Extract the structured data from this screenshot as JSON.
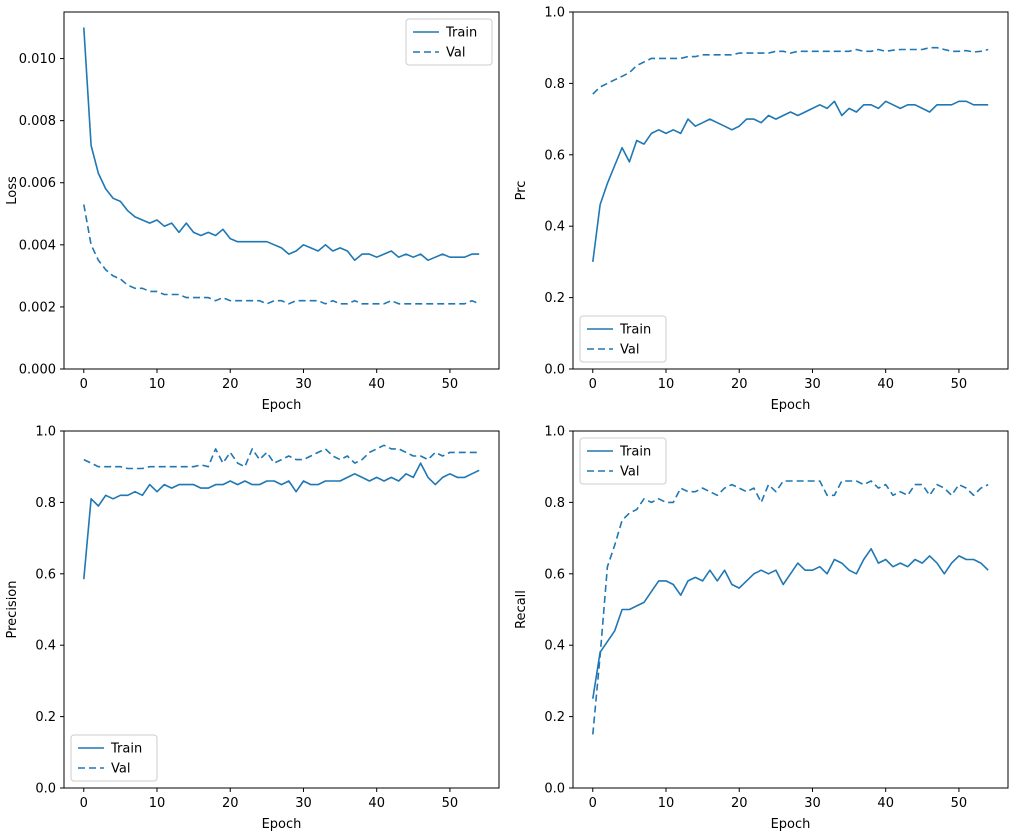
{
  "figure": {
    "background": "#ffffff",
    "accent_color": "#1f77b4",
    "legend_labels": [
      "Train",
      "Val"
    ]
  },
  "chart_data": [
    {
      "type": "line",
      "xlabel": "Epoch",
      "ylabel": "Loss",
      "xlim": [
        -2.7,
        56.7
      ],
      "ylim": [
        0,
        0.0115
      ],
      "xticks": [
        0,
        10,
        20,
        30,
        40,
        50
      ],
      "xtick_labels": [
        "0",
        "10",
        "20",
        "30",
        "40",
        "50"
      ],
      "yticks": [
        0,
        0.002,
        0.004,
        0.006,
        0.008,
        0.01
      ],
      "ytick_labels": [
        "0.000",
        "0.002",
        "0.004",
        "0.006",
        "0.008",
        "0.010"
      ],
      "grid": false,
      "legend": {
        "position": "top-right",
        "entries": [
          "Train",
          "Val"
        ]
      },
      "series": [
        {
          "name": "Train",
          "style": "solid",
          "color": "#1f77b4",
          "values": [
            0.011,
            0.0072,
            0.0063,
            0.0058,
            0.0055,
            0.0054,
            0.0051,
            0.0049,
            0.0048,
            0.0047,
            0.0048,
            0.0046,
            0.0047,
            0.0044,
            0.0047,
            0.0044,
            0.0043,
            0.0044,
            0.0043,
            0.0045,
            0.0042,
            0.0041,
            0.0041,
            0.0041,
            0.0041,
            0.0041,
            0.004,
            0.0039,
            0.0037,
            0.0038,
            0.004,
            0.0039,
            0.0038,
            0.004,
            0.0038,
            0.0039,
            0.0038,
            0.0035,
            0.0037,
            0.0037,
            0.0036,
            0.0037,
            0.0038,
            0.0036,
            0.0037,
            0.0036,
            0.0037,
            0.0035,
            0.0036,
            0.0037,
            0.0036,
            0.0036,
            0.0036,
            0.0037,
            0.0037
          ]
        },
        {
          "name": "Val",
          "style": "dashed",
          "color": "#1f77b4",
          "values": [
            0.0053,
            0.004,
            0.0035,
            0.0032,
            0.003,
            0.0029,
            0.0027,
            0.0026,
            0.0026,
            0.0025,
            0.0025,
            0.0024,
            0.0024,
            0.0024,
            0.0023,
            0.0023,
            0.0023,
            0.0023,
            0.0022,
            0.0023,
            0.0022,
            0.0022,
            0.0022,
            0.0022,
            0.0022,
            0.0021,
            0.0022,
            0.0022,
            0.0021,
            0.0022,
            0.0022,
            0.0022,
            0.0022,
            0.0021,
            0.0022,
            0.0021,
            0.0021,
            0.0022,
            0.0021,
            0.0021,
            0.0021,
            0.0021,
            0.0022,
            0.0021,
            0.0021,
            0.0021,
            0.0021,
            0.0021,
            0.0021,
            0.0021,
            0.0021,
            0.0021,
            0.0021,
            0.0022,
            0.0021
          ]
        }
      ]
    },
    {
      "type": "line",
      "xlabel": "Epoch",
      "ylabel": "Prc",
      "xlim": [
        -2.7,
        56.7
      ],
      "ylim": [
        0,
        1.0
      ],
      "xticks": [
        0,
        10,
        20,
        30,
        40,
        50
      ],
      "xtick_labels": [
        "0",
        "10",
        "20",
        "30",
        "40",
        "50"
      ],
      "yticks": [
        0,
        0.2,
        0.4,
        0.6,
        0.8,
        1.0
      ],
      "ytick_labels": [
        "0.0",
        "0.2",
        "0.4",
        "0.6",
        "0.8",
        "1.0"
      ],
      "grid": false,
      "legend": {
        "position": "bottom-left",
        "entries": [
          "Train",
          "Val"
        ]
      },
      "series": [
        {
          "name": "Train",
          "style": "solid",
          "color": "#1f77b4",
          "values": [
            0.3,
            0.46,
            0.52,
            0.57,
            0.62,
            0.58,
            0.64,
            0.63,
            0.66,
            0.67,
            0.66,
            0.67,
            0.66,
            0.7,
            0.68,
            0.69,
            0.7,
            0.69,
            0.68,
            0.67,
            0.68,
            0.7,
            0.7,
            0.69,
            0.71,
            0.7,
            0.71,
            0.72,
            0.71,
            0.72,
            0.73,
            0.74,
            0.73,
            0.75,
            0.71,
            0.73,
            0.72,
            0.74,
            0.74,
            0.73,
            0.75,
            0.74,
            0.73,
            0.74,
            0.74,
            0.73,
            0.72,
            0.74,
            0.74,
            0.74,
            0.75,
            0.75,
            0.74,
            0.74,
            0.74
          ]
        },
        {
          "name": "Val",
          "style": "dashed",
          "color": "#1f77b4",
          "values": [
            0.77,
            0.79,
            0.8,
            0.81,
            0.82,
            0.83,
            0.85,
            0.86,
            0.87,
            0.87,
            0.87,
            0.87,
            0.87,
            0.875,
            0.875,
            0.88,
            0.88,
            0.88,
            0.88,
            0.88,
            0.885,
            0.885,
            0.885,
            0.885,
            0.885,
            0.89,
            0.89,
            0.885,
            0.89,
            0.89,
            0.89,
            0.89,
            0.89,
            0.89,
            0.89,
            0.89,
            0.895,
            0.89,
            0.89,
            0.895,
            0.89,
            0.893,
            0.895,
            0.895,
            0.895,
            0.895,
            0.9,
            0.9,
            0.895,
            0.89,
            0.89,
            0.892,
            0.888,
            0.89,
            0.895
          ]
        }
      ]
    },
    {
      "type": "line",
      "xlabel": "Epoch",
      "ylabel": "Precision",
      "xlim": [
        -2.7,
        56.7
      ],
      "ylim": [
        0,
        1.0
      ],
      "xticks": [
        0,
        10,
        20,
        30,
        40,
        50
      ],
      "xtick_labels": [
        "0",
        "10",
        "20",
        "30",
        "40",
        "50"
      ],
      "yticks": [
        0,
        0.2,
        0.4,
        0.6,
        0.8,
        1.0
      ],
      "ytick_labels": [
        "0.0",
        "0.2",
        "0.4",
        "0.6",
        "0.8",
        "1.0"
      ],
      "grid": false,
      "legend": {
        "position": "bottom-left",
        "entries": [
          "Train",
          "Val"
        ]
      },
      "series": [
        {
          "name": "Train",
          "style": "solid",
          "color": "#1f77b4",
          "values": [
            0.585,
            0.81,
            0.79,
            0.82,
            0.81,
            0.82,
            0.82,
            0.83,
            0.82,
            0.85,
            0.83,
            0.85,
            0.84,
            0.85,
            0.85,
            0.85,
            0.84,
            0.84,
            0.85,
            0.85,
            0.86,
            0.85,
            0.86,
            0.85,
            0.85,
            0.86,
            0.86,
            0.85,
            0.86,
            0.83,
            0.86,
            0.85,
            0.85,
            0.86,
            0.86,
            0.86,
            0.87,
            0.88,
            0.87,
            0.86,
            0.87,
            0.86,
            0.87,
            0.86,
            0.88,
            0.87,
            0.91,
            0.87,
            0.85,
            0.87,
            0.88,
            0.87,
            0.87,
            0.88,
            0.89
          ]
        },
        {
          "name": "Val",
          "style": "dashed",
          "color": "#1f77b4",
          "values": [
            0.92,
            0.91,
            0.9,
            0.9,
            0.9,
            0.9,
            0.895,
            0.895,
            0.895,
            0.9,
            0.9,
            0.9,
            0.9,
            0.9,
            0.9,
            0.9,
            0.905,
            0.9,
            0.95,
            0.91,
            0.94,
            0.91,
            0.9,
            0.95,
            0.92,
            0.94,
            0.91,
            0.92,
            0.93,
            0.92,
            0.92,
            0.93,
            0.94,
            0.95,
            0.93,
            0.92,
            0.93,
            0.91,
            0.92,
            0.94,
            0.95,
            0.96,
            0.95,
            0.95,
            0.94,
            0.93,
            0.93,
            0.92,
            0.94,
            0.93,
            0.94,
            0.94,
            0.94,
            0.94,
            0.94
          ]
        }
      ]
    },
    {
      "type": "line",
      "xlabel": "Epoch",
      "ylabel": "Recall",
      "xlim": [
        -2.7,
        56.7
      ],
      "ylim": [
        0,
        1.0
      ],
      "xticks": [
        0,
        10,
        20,
        30,
        40,
        50
      ],
      "xtick_labels": [
        "0",
        "10",
        "20",
        "30",
        "40",
        "50"
      ],
      "yticks": [
        0,
        0.2,
        0.4,
        0.6,
        0.8,
        1.0
      ],
      "ytick_labels": [
        "0.0",
        "0.2",
        "0.4",
        "0.6",
        "0.8",
        "1.0"
      ],
      "grid": false,
      "legend": {
        "position": "top-left",
        "entries": [
          "Train",
          "Val"
        ]
      },
      "series": [
        {
          "name": "Train",
          "style": "solid",
          "color": "#1f77b4",
          "values": [
            0.25,
            0.38,
            0.41,
            0.44,
            0.5,
            0.5,
            0.51,
            0.52,
            0.55,
            0.58,
            0.58,
            0.57,
            0.54,
            0.58,
            0.59,
            0.58,
            0.61,
            0.58,
            0.61,
            0.57,
            0.56,
            0.58,
            0.6,
            0.61,
            0.6,
            0.61,
            0.57,
            0.6,
            0.63,
            0.61,
            0.61,
            0.62,
            0.6,
            0.64,
            0.63,
            0.61,
            0.6,
            0.64,
            0.67,
            0.63,
            0.64,
            0.62,
            0.63,
            0.62,
            0.64,
            0.63,
            0.65,
            0.63,
            0.6,
            0.63,
            0.65,
            0.64,
            0.64,
            0.63,
            0.61
          ]
        },
        {
          "name": "Val",
          "style": "dashed",
          "color": "#1f77b4",
          "values": [
            0.15,
            0.37,
            0.62,
            0.68,
            0.75,
            0.77,
            0.78,
            0.81,
            0.8,
            0.81,
            0.8,
            0.8,
            0.84,
            0.83,
            0.83,
            0.84,
            0.83,
            0.82,
            0.84,
            0.85,
            0.84,
            0.83,
            0.84,
            0.8,
            0.85,
            0.83,
            0.86,
            0.86,
            0.86,
            0.86,
            0.86,
            0.86,
            0.82,
            0.82,
            0.86,
            0.86,
            0.86,
            0.85,
            0.86,
            0.84,
            0.85,
            0.82,
            0.83,
            0.82,
            0.85,
            0.85,
            0.82,
            0.85,
            0.84,
            0.82,
            0.85,
            0.84,
            0.82,
            0.84,
            0.85
          ]
        }
      ]
    }
  ]
}
